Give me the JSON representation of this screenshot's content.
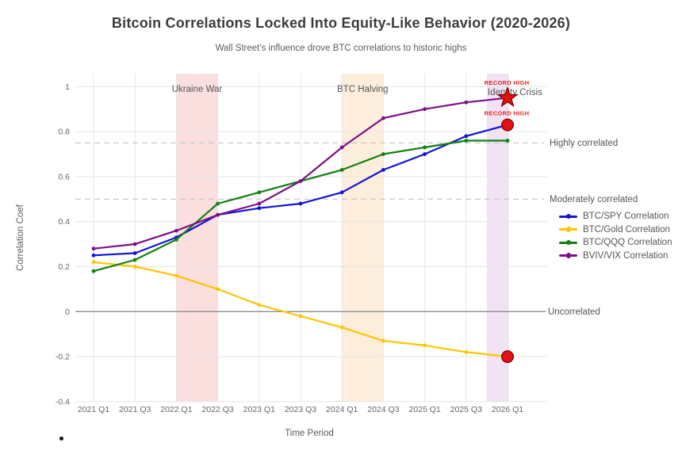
{
  "chart_data": {
    "type": "line",
    "title": "Bitcoin Correlations Locked Into Equity-Like Behavior (2020-2026)",
    "subtitle": "Wall Street's influence drove BTC correlations to historic highs",
    "xlabel": "Time Period",
    "ylabel": "Correlation Coef",
    "categories": [
      "2021 Q1",
      "2021 Q3",
      "2022 Q1",
      "2022 Q3",
      "2023 Q1",
      "2023 Q3",
      "2024 Q1",
      "2024 Q3",
      "2025 Q1",
      "2025 Q3",
      "2026 Q1"
    ],
    "y_ticks": {
      "values": [
        1,
        0.8,
        0.6,
        0.4,
        0.2,
        0,
        -0.2,
        -0.4
      ],
      "labels": [
        "1",
        "0.8",
        "0.6",
        "0.4",
        "0.2",
        "0",
        "-0.2",
        "-0.4"
      ]
    },
    "ylim": [
      -0.4,
      1.06
    ],
    "grid": true,
    "legend_position": "right",
    "series": [
      {
        "name": "BTC/SPY Correlation",
        "color": "#1414d6",
        "values": [
          0.25,
          0.26,
          0.33,
          0.43,
          0.46,
          0.48,
          0.53,
          0.63,
          0.7,
          0.78,
          0.83
        ]
      },
      {
        "name": "BTC/Gold Correlation",
        "color": "#fdc500",
        "values": [
          0.22,
          0.2,
          0.16,
          0.1,
          0.03,
          -0.02,
          -0.07,
          -0.13,
          -0.15,
          -0.18,
          -0.2
        ]
      },
      {
        "name": "BTC/QQQ Correlation",
        "color": "#128012",
        "values": [
          0.18,
          0.23,
          0.32,
          0.48,
          0.53,
          0.58,
          0.63,
          0.7,
          0.73,
          0.76,
          0.76
        ]
      },
      {
        "name": "BVIV/VIX Correlation",
        "color": "#7c0f86",
        "values": [
          0.28,
          0.3,
          0.36,
          0.43,
          0.48,
          0.58,
          0.73,
          0.86,
          0.9,
          0.93,
          0.95
        ]
      }
    ],
    "reference_lines": [
      {
        "label": "Highly correlated",
        "value": 0.75,
        "style": "dashed"
      },
      {
        "label": "Moderately correlated",
        "value": 0.5,
        "style": "dashed"
      },
      {
        "label": "Uncorrelated",
        "value": 0,
        "style": "solid"
      }
    ],
    "bands": [
      {
        "label": "Ukraine War",
        "from": "2022 Q1",
        "to": "2022 Q3",
        "from_i": 2,
        "to_i": 3,
        "color": "#fbdfdf"
      },
      {
        "label": "BTC Halving",
        "from": "2024 Q1",
        "to": "2024 Q3",
        "from_i": 6,
        "to_i": 7,
        "color": "#fdeedc"
      },
      {
        "label": "Identity Crisis",
        "from": "2025 Q4",
        "to": "2026 Q1",
        "from_i": 9.5,
        "to_i": 10.03,
        "color": "#f1e3f3"
      }
    ],
    "callouts": [
      {
        "label": "RECORD HIGH",
        "series": "BVIV/VIX Correlation",
        "category": "2026 Q1",
        "value": 0.95,
        "shape": "star",
        "color": "#e01212"
      },
      {
        "label": "RECORD HIGH",
        "series": "BTC/SPY Correlation",
        "category": "2026 Q1",
        "value": 0.83,
        "shape": "circle",
        "color": "#e01212"
      },
      {
        "label": "",
        "series": "BTC/Gold Correlation",
        "category": "2026 Q1",
        "value": -0.2,
        "shape": "circle",
        "color": "#e01212"
      }
    ],
    "label_color": "#e8251f"
  }
}
